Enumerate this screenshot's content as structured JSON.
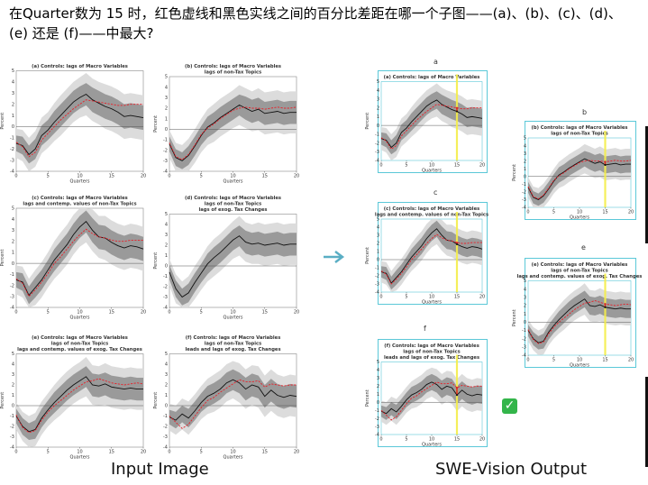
{
  "question": "在Quarter数为 15 时，红色虚线和黑色实线之间的百分比差距在哪一个子图——(a)、(b)、(c)、(d)、(e) 还是 (f)——中最大?",
  "captions": {
    "left": "Input Image",
    "right": "SWE-Vision Output"
  },
  "output_letters": [
    "a",
    "b",
    "c",
    "e",
    "f"
  ],
  "colors": {
    "red_dashed": "#e8212a",
    "black_solid": "#111111",
    "band_inner": "#9a9a9a",
    "band_outer": "#dcdcdc",
    "highlight": "#f5ee4a",
    "frame": "#5bc8d8",
    "check": "#33b54a"
  },
  "icons": {
    "arrow": "arrow-right-icon",
    "check": "check-mark-icon"
  },
  "chart_data": [
    {
      "id": "a",
      "type": "line",
      "title": [
        "(a) Controls: lags of Macro Variables"
      ],
      "xlabel": "Quarters",
      "ylabel": "Percent",
      "xlim": [
        0,
        20
      ],
      "ylim": [
        -4,
        5
      ],
      "xticks": [
        0,
        5,
        10,
        15,
        20
      ],
      "yticks": [
        -4,
        -3,
        -2,
        -1,
        0,
        1,
        2,
        3,
        4,
        5
      ],
      "x": [
        0,
        1,
        2,
        3,
        4,
        5,
        6,
        7,
        8,
        9,
        10,
        11,
        12,
        13,
        14,
        15,
        16,
        17,
        18,
        19,
        20
      ],
      "series": [
        {
          "style": "solid",
          "values": [
            -1.5,
            -1.7,
            -2.5,
            -2.0,
            -0.8,
            -0.3,
            0.4,
            1.0,
            1.6,
            2.2,
            2.6,
            2.9,
            2.4,
            2.1,
            1.8,
            1.6,
            1.3,
            0.9,
            1.0,
            0.9,
            0.8
          ]
        },
        {
          "style": "dashed",
          "values": [
            -1.4,
            -1.8,
            -2.7,
            -2.3,
            -1.2,
            -0.6,
            0.0,
            0.6,
            1.1,
            1.6,
            2.0,
            2.4,
            2.3,
            2.2,
            2.1,
            2.0,
            1.9,
            1.9,
            2.0,
            2.0,
            2.0
          ]
        }
      ],
      "band_inner": [
        0.7,
        0.8,
        0.8,
        0.9,
        0.9,
        0.9,
        1.0,
        1.0,
        1.0,
        1.0,
        1.0,
        1.0,
        1.1,
        1.1,
        1.1,
        1.1,
        1.1,
        1.1,
        1.1,
        1.1,
        1.1
      ],
      "band_outer": [
        1.3,
        1.4,
        1.5,
        1.6,
        1.6,
        1.6,
        1.7,
        1.8,
        1.8,
        1.8,
        1.8,
        1.9,
        1.9,
        1.9,
        2.0,
        2.0,
        2.0,
        2.0,
        2.0,
        2.0,
        2.0
      ]
    },
    {
      "id": "b",
      "type": "line",
      "title": [
        "(b) Controls: lags of Macro Variables",
        "lags of non-Tax Topics"
      ],
      "xlabel": "Quarters",
      "ylabel": "Percent",
      "xlim": [
        0,
        20
      ],
      "ylim": [
        -4,
        5
      ],
      "xticks": [
        0,
        5,
        10,
        15,
        20
      ],
      "yticks": [
        -4,
        -3,
        -2,
        -1,
        0,
        1,
        2,
        3,
        4,
        5
      ],
      "x": [
        0,
        1,
        2,
        3,
        4,
        5,
        6,
        7,
        8,
        9,
        10,
        11,
        12,
        13,
        14,
        15,
        16,
        17,
        18,
        19,
        20
      ],
      "series": [
        {
          "style": "solid",
          "values": [
            -1.4,
            -2.7,
            -3.0,
            -2.5,
            -1.6,
            -0.6,
            0.2,
            0.6,
            1.1,
            1.5,
            1.9,
            2.3,
            2.0,
            1.7,
            1.9,
            1.5,
            1.6,
            1.7,
            1.5,
            1.6,
            1.6
          ]
        },
        {
          "style": "dashed",
          "values": [
            -1.3,
            -2.6,
            -2.9,
            -2.4,
            -1.5,
            -0.5,
            0.1,
            0.5,
            1.0,
            1.4,
            1.8,
            2.0,
            2.1,
            2.0,
            2.0,
            1.9,
            2.0,
            2.1,
            2.0,
            2.0,
            2.1
          ]
        }
      ],
      "band_inner": [
        0.7,
        0.8,
        0.8,
        0.9,
        0.9,
        0.9,
        1.0,
        1.0,
        1.0,
        1.0,
        1.0,
        1.0,
        1.1,
        1.1,
        1.1,
        1.1,
        1.1,
        1.1,
        1.1,
        1.1,
        1.1
      ],
      "band_outer": [
        1.3,
        1.4,
        1.5,
        1.6,
        1.6,
        1.6,
        1.7,
        1.8,
        1.8,
        1.8,
        1.8,
        1.9,
        1.9,
        1.9,
        2.0,
        2.0,
        2.0,
        2.0,
        2.0,
        2.0,
        2.0
      ]
    },
    {
      "id": "c",
      "type": "line",
      "title": [
        "(c) Controls: lags of Macro Variables",
        "lags and contemp. values of non-Tax Topics"
      ],
      "xlabel": "Quarters",
      "ylabel": "Percent",
      "xlim": [
        0,
        20
      ],
      "ylim": [
        -4,
        5
      ],
      "xticks": [
        0,
        5,
        10,
        15,
        20
      ],
      "yticks": [
        -4,
        -3,
        -2,
        -1,
        0,
        1,
        2,
        3,
        4,
        5
      ],
      "x": [
        0,
        1,
        2,
        3,
        4,
        5,
        6,
        7,
        8,
        9,
        10,
        11,
        12,
        13,
        14,
        15,
        16,
        17,
        18,
        19,
        20
      ],
      "series": [
        {
          "style": "solid",
          "values": [
            -1.5,
            -1.7,
            -2.9,
            -2.2,
            -1.5,
            -0.6,
            0.3,
            1.0,
            1.7,
            2.6,
            3.3,
            3.8,
            3.0,
            2.4,
            2.3,
            1.9,
            1.6,
            1.4,
            1.6,
            1.5,
            1.3
          ]
        },
        {
          "style": "dashed",
          "values": [
            -1.4,
            -1.8,
            -3.0,
            -2.4,
            -1.7,
            -0.9,
            0.0,
            0.6,
            1.3,
            2.0,
            2.6,
            3.1,
            2.7,
            2.4,
            2.3,
            2.1,
            2.0,
            2.0,
            2.1,
            2.1,
            2.1
          ]
        }
      ],
      "band_inner": [
        0.7,
        0.8,
        0.8,
        0.9,
        0.9,
        0.9,
        1.0,
        1.0,
        1.0,
        1.0,
        1.0,
        1.0,
        1.1,
        1.1,
        1.1,
        1.1,
        1.1,
        1.1,
        1.1,
        1.1,
        1.1
      ],
      "band_outer": [
        1.3,
        1.4,
        1.5,
        1.6,
        1.6,
        1.6,
        1.7,
        1.8,
        1.8,
        1.8,
        1.8,
        1.9,
        1.9,
        1.9,
        2.0,
        2.0,
        2.0,
        2.0,
        2.0,
        2.0,
        2.0
      ]
    },
    {
      "id": "d",
      "type": "line",
      "title": [
        "(d) Controls: lags of Macro Variables",
        "lags of non-Tax Topics",
        "lags of exog. Tax Changes"
      ],
      "xlabel": "Quarters",
      "ylabel": "Percent",
      "xlim": [
        0,
        20
      ],
      "ylim": [
        -4,
        5
      ],
      "xticks": [
        0,
        5,
        10,
        15,
        20
      ],
      "yticks": [
        -4,
        -3,
        -2,
        -1,
        0,
        1,
        2,
        3,
        4,
        5
      ],
      "x": [
        0,
        1,
        2,
        3,
        4,
        5,
        6,
        7,
        8,
        9,
        10,
        11,
        12,
        13,
        14,
        15,
        16,
        17,
        18,
        19,
        20
      ],
      "series": [
        {
          "style": "solid",
          "values": [
            -0.6,
            -2.2,
            -3.0,
            -2.6,
            -1.6,
            -0.7,
            0.2,
            0.8,
            1.3,
            1.9,
            2.5,
            2.9,
            2.3,
            2.1,
            2.2,
            2.0,
            2.1,
            2.2,
            2.0,
            2.1,
            2.1
          ]
        }
      ],
      "band_inner": [
        0.7,
        0.8,
        0.8,
        0.9,
        0.9,
        0.9,
        1.0,
        1.0,
        1.0,
        1.0,
        1.0,
        1.0,
        1.1,
        1.1,
        1.1,
        1.1,
        1.1,
        1.1,
        1.1,
        1.1,
        1.1
      ],
      "band_outer": [
        1.3,
        1.4,
        1.5,
        1.6,
        1.6,
        1.6,
        1.7,
        1.8,
        1.8,
        1.8,
        1.8,
        1.9,
        1.9,
        1.9,
        2.0,
        2.0,
        2.0,
        2.0,
        2.0,
        2.0,
        2.0
      ]
    },
    {
      "id": "e",
      "type": "line",
      "title": [
        "(e) Controls: lags of Macro Variables",
        "lags of non-Tax Topics",
        "lags and contemp. values of exog. Tax Changes"
      ],
      "xlabel": "Quarters",
      "ylabel": "Percent",
      "xlim": [
        0,
        20
      ],
      "ylim": [
        -4,
        5
      ],
      "xticks": [
        0,
        5,
        10,
        15,
        20
      ],
      "yticks": [
        -4,
        -3,
        -2,
        -1,
        0,
        1,
        2,
        3,
        4,
        5
      ],
      "x": [
        0,
        1,
        2,
        3,
        4,
        5,
        6,
        7,
        8,
        9,
        10,
        11,
        12,
        13,
        14,
        15,
        16,
        17,
        18,
        19,
        20
      ],
      "series": [
        {
          "style": "solid",
          "values": [
            -1.0,
            -2.0,
            -2.5,
            -2.3,
            -1.2,
            -0.4,
            0.3,
            0.9,
            1.5,
            2.0,
            2.4,
            2.8,
            2.0,
            1.9,
            2.1,
            1.8,
            1.7,
            1.6,
            1.7,
            1.6,
            1.6
          ]
        },
        {
          "style": "dashed",
          "values": [
            -0.9,
            -2.1,
            -2.6,
            -2.4,
            -1.4,
            -0.6,
            0.0,
            0.5,
            1.0,
            1.5,
            1.9,
            2.3,
            2.4,
            2.6,
            2.4,
            2.2,
            2.1,
            2.0,
            2.1,
            2.2,
            2.1
          ]
        }
      ],
      "band_inner": [
        0.7,
        0.8,
        0.8,
        0.9,
        0.9,
        0.9,
        1.0,
        1.0,
        1.0,
        1.0,
        1.0,
        1.0,
        1.1,
        1.1,
        1.1,
        1.1,
        1.1,
        1.1,
        1.1,
        1.1,
        1.1
      ],
      "band_outer": [
        1.3,
        1.4,
        1.5,
        1.6,
        1.6,
        1.6,
        1.7,
        1.8,
        1.8,
        1.8,
        1.8,
        1.9,
        1.9,
        1.9,
        2.0,
        2.0,
        2.0,
        2.0,
        2.0,
        2.0,
        2.0
      ]
    },
    {
      "id": "f",
      "type": "line",
      "title": [
        "(f) Controls: lags of Macro Variables",
        "lags of non-Tax Topics",
        "leads and lags of exog. Tax Changes"
      ],
      "xlabel": "Quarters",
      "ylabel": "Percent",
      "xlim": [
        0,
        20
      ],
      "ylim": [
        -4,
        5
      ],
      "xticks": [
        0,
        5,
        10,
        15,
        20
      ],
      "yticks": [
        -4,
        -3,
        -2,
        -1,
        0,
        1,
        2,
        3,
        4,
        5
      ],
      "x": [
        0,
        1,
        2,
        3,
        4,
        5,
        6,
        7,
        8,
        9,
        10,
        11,
        12,
        13,
        14,
        15,
        16,
        17,
        18,
        19,
        20
      ],
      "series": [
        {
          "style": "solid",
          "values": [
            -1.1,
            -1.4,
            -0.8,
            -1.2,
            -0.5,
            0.3,
            0.9,
            1.2,
            1.6,
            2.2,
            2.5,
            2.2,
            1.6,
            2.0,
            1.8,
            0.9,
            1.5,
            1.0,
            0.8,
            1.0,
            0.9
          ]
        },
        {
          "style": "dashed",
          "values": [
            -1.0,
            -1.6,
            -2.2,
            -1.8,
            -1.0,
            -0.2,
            0.5,
            0.8,
            1.3,
            1.7,
            2.1,
            2.5,
            2.3,
            2.3,
            2.4,
            1.8,
            2.1,
            2.0,
            1.9,
            2.0,
            2.0
          ]
        }
      ],
      "band_inner": [
        0.7,
        0.8,
        0.8,
        0.9,
        0.9,
        0.9,
        1.0,
        1.0,
        1.0,
        1.0,
        1.0,
        1.0,
        1.1,
        1.1,
        1.1,
        1.1,
        1.1,
        1.1,
        1.1,
        1.1,
        1.1
      ],
      "band_outer": [
        1.3,
        1.4,
        1.5,
        1.6,
        1.6,
        1.6,
        1.7,
        1.8,
        1.8,
        1.8,
        1.8,
        1.9,
        1.9,
        1.9,
        2.0,
        2.0,
        2.0,
        2.0,
        2.0,
        2.0,
        2.0
      ]
    }
  ]
}
